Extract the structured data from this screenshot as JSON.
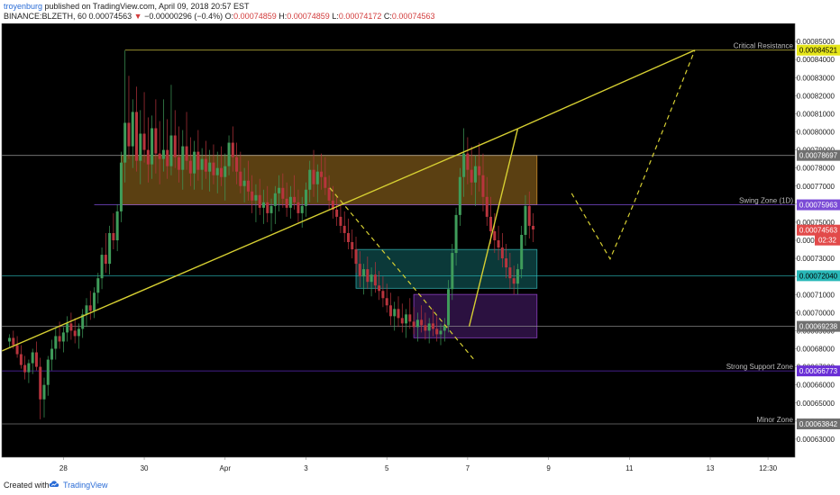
{
  "header": {
    "author": "troyenburg",
    "published": "published on TradingView.com, April 09, 2018 20:57 EST",
    "symbol": "BINANCE:BLZETH, 60",
    "last": "0.00074563",
    "change": "−0.00000296 (−0.4%)",
    "o_label": "O:",
    "o": "0.00074859",
    "h_label": "H:",
    "h": "0.00074859",
    "l_label": "L:",
    "l": "0.00074172",
    "c_label": "C:",
    "c": "0.00074563"
  },
  "footer": {
    "created_with": "Created with",
    "brand": "TradingView",
    "logo_icon": "tradingview-cloud-icon"
  },
  "colors": {
    "background": "#000000",
    "bull": "#3f9c5a",
    "bear": "#b8343d",
    "trendline": "#d6cf32",
    "resistance": "#d6cf32",
    "swing": "#7b4bd6",
    "cyan": "#29b8b8",
    "support": "#6a2fd6",
    "orange_zone": "#7a5518",
    "teal_zone": "#0f4c4c",
    "purple_zone": "#3a1755",
    "last_price": "#e24a4a"
  },
  "chart_data": {
    "type": "candlestick",
    "symbol": "BINANCE:BLZETH",
    "interval": "60",
    "y_axis": {
      "min": 0.00062,
      "max": 0.00086,
      "ticks": [
        "0.00063000",
        "0.00064000",
        "0.00065000",
        "0.00066000",
        "0.00067000",
        "0.00068000",
        "0.00069000",
        "0.00070000",
        "0.00071000",
        "0.00072000",
        "0.00073000",
        "0.00074000",
        "0.00075000",
        "0.00076000",
        "0.00077000",
        "0.00078000",
        "0.00079000",
        "0.00080000",
        "0.00081000",
        "0.00082000",
        "0.00083000",
        "0.00084000",
        "0.00085000"
      ]
    },
    "x_axis": {
      "min": -1,
      "max": 102,
      "ticks": [
        {
          "x": 7,
          "label": "28"
        },
        {
          "x": 17.5,
          "label": "30"
        },
        {
          "x": 28,
          "label": "Apr"
        },
        {
          "x": 38.5,
          "label": "3"
        },
        {
          "x": 49,
          "label": "5"
        },
        {
          "x": 59.5,
          "label": "7"
        },
        {
          "x": 70,
          "label": "9"
        },
        {
          "x": 80.5,
          "label": "11"
        },
        {
          "x": 91,
          "label": "13"
        },
        {
          "x": 98.5,
          "label": "12:30"
        }
      ]
    },
    "candles": [
      [
        0,
        0.000684,
        0.000688,
        0.000681,
        0.000686
      ],
      [
        0.5,
        0.000686,
        0.00069,
        0.00068,
        0.000682
      ],
      [
        1,
        0.000682,
        0.000687,
        0.000675,
        0.000677
      ],
      [
        1.5,
        0.000677,
        0.000682,
        0.000669,
        0.000671
      ],
      [
        2,
        0.000671,
        0.000676,
        0.000663,
        0.000667
      ],
      [
        2.5,
        0.000667,
        0.000674,
        0.000661,
        0.000672
      ],
      [
        3,
        0.000672,
        0.00068,
        0.000666,
        0.000678
      ],
      [
        3.5,
        0.000678,
        0.000684,
        0.000668,
        0.00067
      ],
      [
        4,
        0.00067,
        0.000675,
        0.000641,
        0.000652
      ],
      [
        4.5,
        0.000652,
        0.000664,
        0.000642,
        0.00066
      ],
      [
        5,
        0.00066,
        0.000676,
        0.000654,
        0.000674
      ],
      [
        5.5,
        0.000674,
        0.000685,
        0.000668,
        0.00068
      ],
      [
        6,
        0.00068,
        0.000692,
        0.000674,
        0.000687
      ],
      [
        6.5,
        0.000687,
        0.000695,
        0.00068,
        0.000684
      ],
      [
        7,
        0.000684,
        0.000692,
        0.000678,
        0.000689
      ],
      [
        7.5,
        0.000689,
        0.000698,
        0.000684,
        0.000694
      ],
      [
        8,
        0.000694,
        0.0007,
        0.000685,
        0.00069
      ],
      [
        8.5,
        0.00069,
        0.000697,
        0.000683,
        0.000687
      ],
      [
        9,
        0.000687,
        0.000694,
        0.00068,
        0.000691
      ],
      [
        9.5,
        0.000691,
        0.000702,
        0.000686,
        0.000699
      ],
      [
        10,
        0.000699,
        0.000708,
        0.000692,
        0.000704
      ],
      [
        10.5,
        0.000704,
        0.000712,
        0.000696,
        0.000701
      ],
      [
        11,
        0.000701,
        0.000714,
        0.000697,
        0.000711
      ],
      [
        11.5,
        0.000711,
        0.000722,
        0.000705,
        0.000719
      ],
      [
        12,
        0.000719,
        0.000736,
        0.000713,
        0.000732
      ],
      [
        12.5,
        0.000732,
        0.000744,
        0.000722,
        0.000727
      ],
      [
        13,
        0.000727,
        0.000748,
        0.000721,
        0.000744
      ],
      [
        13.5,
        0.000744,
        0.000755,
        0.000735,
        0.00074
      ],
      [
        14,
        0.00074,
        0.00076,
        0.000734,
        0.000756
      ],
      [
        14.5,
        0.000756,
        0.000789,
        0.00075,
        0.000783
      ],
      [
        15,
        0.000783,
        0.000845,
        0.000772,
        0.000805
      ],
      [
        15.5,
        0.000805,
        0.000831,
        0.000785,
        0.000792
      ],
      [
        16,
        0.000792,
        0.000818,
        0.00078,
        0.000811
      ],
      [
        16.5,
        0.000811,
        0.000825,
        0.000778,
        0.000784
      ],
      [
        17,
        0.000784,
        0.000812,
        0.000771,
        0.000799
      ],
      [
        17.5,
        0.000799,
        0.000822,
        0.000783,
        0.00079
      ],
      [
        18,
        0.00079,
        0.000808,
        0.000772,
        0.000782
      ],
      [
        18.5,
        0.000782,
        0.000809,
        0.000774,
        0.000802
      ],
      [
        19,
        0.000802,
        0.000818,
        0.000777,
        0.000788
      ],
      [
        19.5,
        0.000788,
        0.000806,
        0.000771,
        0.000785
      ],
      [
        20,
        0.000785,
        0.000818,
        0.000778,
        0.00079
      ],
      [
        20.5,
        0.00079,
        0.000807,
        0.000774,
        0.000781
      ],
      [
        21,
        0.000781,
        0.000826,
        0.000776,
        0.000798
      ],
      [
        21.5,
        0.000798,
        0.000812,
        0.00078,
        0.000786
      ],
      [
        22,
        0.000786,
        0.000803,
        0.000772,
        0.000779
      ],
      [
        22.5,
        0.000779,
        0.000801,
        0.000768,
        0.000792
      ],
      [
        23,
        0.000792,
        0.000811,
        0.000779,
        0.000784
      ],
      [
        23.5,
        0.000784,
        0.000797,
        0.00077,
        0.000777
      ],
      [
        24,
        0.000777,
        0.000795,
        0.000768,
        0.000789
      ],
      [
        24.5,
        0.000789,
        0.000801,
        0.000773,
        0.000779
      ],
      [
        25,
        0.000779,
        0.000791,
        0.000768,
        0.000785
      ],
      [
        25.5,
        0.000785,
        0.000795,
        0.000774,
        0.000778
      ],
      [
        26,
        0.000778,
        0.00079,
        0.000767,
        0.000783
      ],
      [
        26.5,
        0.000783,
        0.000793,
        0.000771,
        0.000776
      ],
      [
        27,
        0.000776,
        0.000789,
        0.000766,
        0.00078
      ],
      [
        27.5,
        0.00078,
        0.000792,
        0.00077,
        0.000775
      ],
      [
        28,
        0.000775,
        0.000788,
        0.000762,
        0.000781
      ],
      [
        28.5,
        0.000781,
        0.000798,
        0.000776,
        0.000794
      ],
      [
        29,
        0.000794,
        0.000803,
        0.000778,
        0.000786
      ],
      [
        29.5,
        0.000786,
        0.000794,
        0.000771,
        0.000778
      ],
      [
        30,
        0.000778,
        0.000789,
        0.000766,
        0.00077
      ],
      [
        30.5,
        0.00077,
        0.00078,
        0.000761,
        0.000773
      ],
      [
        31,
        0.000773,
        0.000784,
        0.000762,
        0.000767
      ],
      [
        31.5,
        0.000767,
        0.000776,
        0.000755,
        0.000762
      ],
      [
        32,
        0.000762,
        0.000771,
        0.00075,
        0.000765
      ],
      [
        32.5,
        0.000765,
        0.000774,
        0.000754,
        0.000758
      ],
      [
        33,
        0.000758,
        0.000768,
        0.000749,
        0.000761
      ],
      [
        33.5,
        0.000761,
        0.00077,
        0.00075,
        0.000755
      ],
      [
        34,
        0.000755,
        0.000763,
        0.000745,
        0.000759
      ],
      [
        34.5,
        0.000759,
        0.00077,
        0.000749,
        0.000766
      ],
      [
        35,
        0.000766,
        0.000776,
        0.000756,
        0.000769
      ],
      [
        35.5,
        0.000769,
        0.000777,
        0.000758,
        0.000763
      ],
      [
        36,
        0.000763,
        0.000772,
        0.000753,
        0.000758
      ],
      [
        36.5,
        0.000758,
        0.00077,
        0.000752,
        0.000764
      ],
      [
        37,
        0.000764,
        0.000776,
        0.000757,
        0.000761
      ],
      [
        37.5,
        0.000761,
        0.000768,
        0.00075,
        0.000755
      ],
      [
        38,
        0.000755,
        0.000764,
        0.000747,
        0.000759
      ],
      [
        38.5,
        0.000759,
        0.000772,
        0.000753,
        0.000768
      ],
      [
        39,
        0.000768,
        0.000784,
        0.000761,
        0.000779
      ],
      [
        39.5,
        0.000779,
        0.00079,
        0.000764,
        0.000771
      ],
      [
        40,
        0.000771,
        0.000782,
        0.000761,
        0.000778
      ],
      [
        40.5,
        0.000778,
        0.000788,
        0.000768,
        0.000775
      ],
      [
        41,
        0.000775,
        0.000786,
        0.000765,
        0.000769
      ],
      [
        41.5,
        0.000769,
        0.000776,
        0.000757,
        0.000762
      ],
      [
        42,
        0.000762,
        0.00077,
        0.000752,
        0.000757
      ],
      [
        42.5,
        0.000757,
        0.000765,
        0.000748,
        0.000753
      ],
      [
        43,
        0.000753,
        0.000761,
        0.000744,
        0.000748
      ],
      [
        43.5,
        0.000748,
        0.000756,
        0.000739,
        0.000744
      ],
      [
        44,
        0.000744,
        0.000752,
        0.000735,
        0.000739
      ],
      [
        44.5,
        0.000739,
        0.000746,
        0.00073,
        0.000735
      ],
      [
        45,
        0.000735,
        0.000742,
        0.000722,
        0.000727
      ],
      [
        45.5,
        0.000727,
        0.000734,
        0.000714,
        0.00072
      ],
      [
        46,
        0.00072,
        0.000727,
        0.00071,
        0.000724
      ],
      [
        46.5,
        0.000724,
        0.000731,
        0.000713,
        0.000717
      ],
      [
        47,
        0.000717,
        0.000725,
        0.000709,
        0.000721
      ],
      [
        47.5,
        0.000721,
        0.000728,
        0.000711,
        0.000715
      ],
      [
        48,
        0.000715,
        0.000723,
        0.000707,
        0.000712
      ],
      [
        48.5,
        0.000712,
        0.00072,
        0.000703,
        0.000708
      ],
      [
        49,
        0.000708,
        0.000716,
        0.0007,
        0.000704
      ],
      [
        49.5,
        0.000704,
        0.000711,
        0.000693,
        0.000698
      ],
      [
        50,
        0.000698,
        0.000706,
        0.00069,
        0.000702
      ],
      [
        50.5,
        0.000702,
        0.000709,
        0.000692,
        0.000697
      ],
      [
        51,
        0.000697,
        0.000705,
        0.000689,
        0.000694
      ],
      [
        51.5,
        0.000694,
        0.000702,
        0.000686,
        0.000699
      ],
      [
        52,
        0.000699,
        0.000708,
        0.000691,
        0.000695
      ],
      [
        52.5,
        0.000695,
        0.000703,
        0.000688,
        0.000692
      ],
      [
        53,
        0.000692,
        0.0007,
        0.000684,
        0.000696
      ],
      [
        53.5,
        0.000696,
        0.000704,
        0.000689,
        0.000693
      ],
      [
        54,
        0.000693,
        0.0007,
        0.000685,
        0.00069
      ],
      [
        54.5,
        0.00069,
        0.000697,
        0.000683,
        0.000694
      ],
      [
        55,
        0.000694,
        0.000702,
        0.000687,
        0.000691
      ],
      [
        55.5,
        0.000691,
        0.000698,
        0.000684,
        0.000688
      ],
      [
        56,
        0.000688,
        0.000694,
        0.000682,
        0.00069
      ],
      [
        56.5,
        0.00069,
        0.000697,
        0.000684,
        0.000693
      ],
      [
        57,
        0.000693,
        0.000718,
        0.000689,
        0.000713
      ],
      [
        57.5,
        0.000713,
        0.000738,
        0.000707,
        0.000733
      ],
      [
        58,
        0.000733,
        0.000758,
        0.000726,
        0.000754
      ],
      [
        58.5,
        0.000754,
        0.00078,
        0.000748,
        0.000775
      ],
      [
        59,
        0.000775,
        0.000802,
        0.000764,
        0.000788
      ],
      [
        59.5,
        0.000788,
        0.000797,
        0.000771,
        0.000779
      ],
      [
        60,
        0.000779,
        0.000792,
        0.000765,
        0.000772
      ],
      [
        60.5,
        0.000772,
        0.000787,
        0.000759,
        0.000781
      ],
      [
        61,
        0.000781,
        0.000794,
        0.000767,
        0.000776
      ],
      [
        61.5,
        0.000776,
        0.000788,
        0.000756,
        0.000764
      ],
      [
        62,
        0.000764,
        0.000775,
        0.000748,
        0.000753
      ],
      [
        62.5,
        0.000753,
        0.000764,
        0.000738,
        0.000745
      ],
      [
        63,
        0.000745,
        0.000755,
        0.000733,
        0.00074
      ],
      [
        63.5,
        0.00074,
        0.000748,
        0.000729,
        0.000736
      ],
      [
        64,
        0.000736,
        0.000744,
        0.000725,
        0.00073
      ],
      [
        64.5,
        0.00073,
        0.000738,
        0.000719,
        0.000725
      ],
      [
        65,
        0.000725,
        0.000733,
        0.000713,
        0.000719
      ],
      [
        65.5,
        0.000719,
        0.000726,
        0.00071,
        0.000716
      ],
      [
        66,
        0.000716,
        0.000727,
        0.00071,
        0.000724
      ],
      [
        66.5,
        0.000724,
        0.000748,
        0.000719,
        0.000743
      ],
      [
        67,
        0.000743,
        0.000765,
        0.000737,
        0.000759
      ],
      [
        67.5,
        0.000759,
        0.000767,
        0.000741,
        0.000748
      ],
      [
        68,
        0.000748,
        0.000755,
        0.000739,
        0.000746
      ]
    ],
    "levels": [
      {
        "name": "Critical Resistance",
        "value": 0.00084521,
        "tag": "0.00084521"
      },
      {
        "name": "",
        "value": 0.00078697,
        "tag": "0.00078697"
      },
      {
        "name": "Swing Zone (1D)",
        "value": 0.00075963,
        "tag": "0.00075963"
      },
      {
        "name": "",
        "value": 0.0007204,
        "tag": "0.00072040"
      },
      {
        "name": "",
        "value": 0.00069238,
        "tag": "0.00069238"
      },
      {
        "name": "Strong Support Zone",
        "value": 0.00066773,
        "tag": "0.00066773"
      },
      {
        "name": "Minor Zone",
        "value": 0.00063842,
        "tag": "0.00063842"
      }
    ],
    "last_price": {
      "value": 0.00074563,
      "tag": "0.00074563",
      "countdown": "02:32"
    },
    "zones": [
      {
        "name": "orange-zone",
        "x1": 14.5,
        "x2": 68.5,
        "y1": 0.00075963,
        "y2": 0.00078697
      },
      {
        "name": "teal-zone",
        "x1": 45,
        "x2": 68.5,
        "y1": 0.00071345,
        "y2": 0.00073493
      },
      {
        "name": "purple-zone",
        "x1": 52.5,
        "x2": 68.5,
        "y1": 0.00068606,
        "y2": 0.00071006
      }
    ],
    "trendlines": [
      {
        "name": "long-trendline",
        "points": [
          [
            -1,
            0.00067876
          ],
          [
            66,
            0.00080173
          ]
        ]
      },
      {
        "name": "rise-trendline",
        "points": [
          [
            59.7,
            0.00069238
          ],
          [
            66,
            0.00080173
          ]
        ]
      },
      {
        "name": "critical-trendline",
        "points": [
          [
            66,
            0.00080173
          ],
          [
            89,
            0.00084521
          ]
        ]
      }
    ],
    "projections": [
      {
        "name": "dashed-fall",
        "points": [
          [
            41.6,
            0.00076901
          ],
          [
            60.5,
            0.0006731
          ]
        ]
      },
      {
        "name": "dashed-forecast",
        "points": [
          [
            73,
            0.00076597
          ],
          [
            78,
            0.00072971
          ],
          [
            81,
            0.00075963
          ],
          [
            89,
            0.00084521
          ]
        ]
      }
    ]
  }
}
